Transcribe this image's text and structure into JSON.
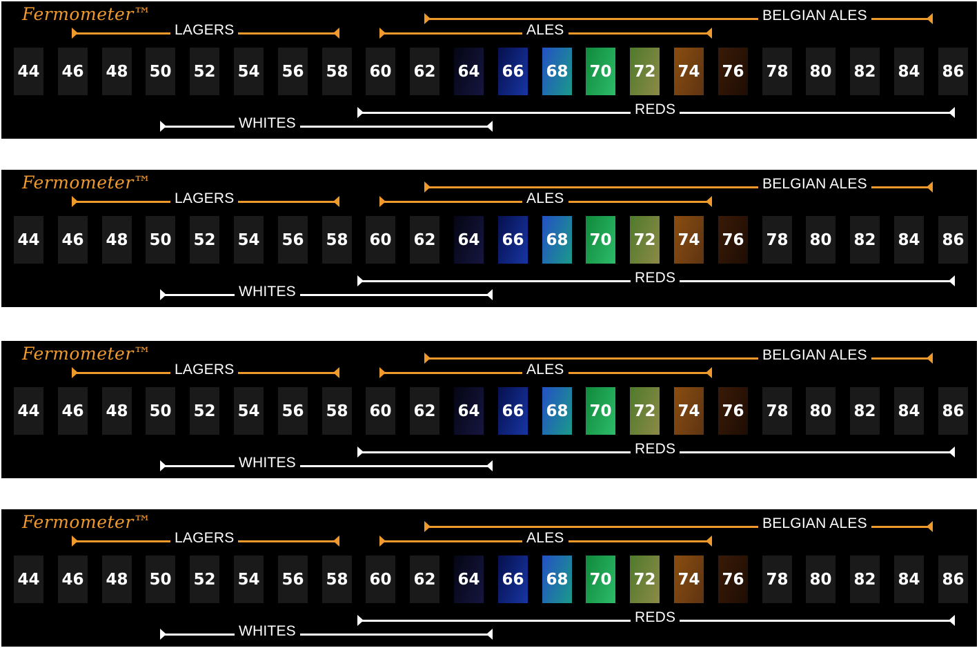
{
  "brand": "Fermometer™",
  "temperatures": [
    "44",
    "46",
    "48",
    "50",
    "52",
    "54",
    "56",
    "58",
    "60",
    "62",
    "64",
    "66",
    "68",
    "70",
    "72",
    "74",
    "76",
    "78",
    "80",
    "82",
    "84",
    "86"
  ],
  "cell_colors": {
    "base": "#1a1a1a",
    "64": "#0b0b22",
    "66": "#0a1a6e",
    "68": "#1f5fae",
    "70": "#16a04e",
    "72": "#6d8a3a",
    "74": "#7a4714",
    "76": "#2e1608"
  },
  "ranges": {
    "belgian_ales": "BELGIAN ALES",
    "lagers": "LAGERS",
    "ales": "ALES",
    "reds": "REDS",
    "whites": "WHITES"
  },
  "accent_color": "#f09a2e"
}
